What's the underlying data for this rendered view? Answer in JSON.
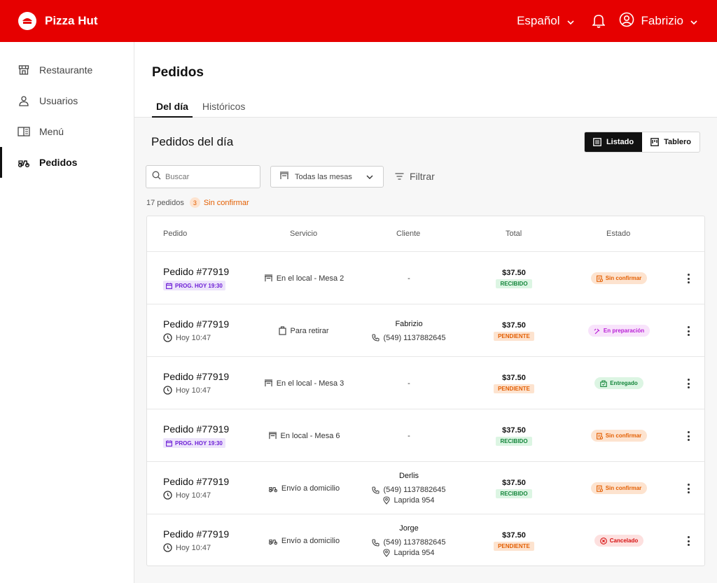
{
  "app": {
    "brand": "Pizza Hut",
    "language": "Español",
    "user": "Fabrizio"
  },
  "sidebar": {
    "items": [
      {
        "label": "Restaurante",
        "icon": "store-icon"
      },
      {
        "label": "Usuarios",
        "icon": "user-icon"
      },
      {
        "label": "Menú",
        "icon": "book-icon"
      },
      {
        "label": "Pedidos",
        "icon": "scooter-icon",
        "active": true
      }
    ]
  },
  "main": {
    "title": "Pedidos",
    "tabs": [
      {
        "label": "Del día",
        "active": true
      },
      {
        "label": "Históricos",
        "active": false
      }
    ],
    "section_title": "Pedidos del día",
    "view_toggle": {
      "list": "Listado",
      "board": "Tablero",
      "active": "Listado"
    },
    "search": {
      "placeholder": "Buscar",
      "value": ""
    },
    "table_select": {
      "value": "Todas las mesas"
    },
    "filter_label": "Filtrar",
    "summary": {
      "count_text": "17 pedidos",
      "unconfirmed_count": "3",
      "unconfirmed_label": "Sin confirmar"
    }
  },
  "table": {
    "headers": [
      "Pedido",
      "Servicio",
      "Cliente",
      "Total",
      "Estado"
    ],
    "rows": [
      {
        "order": "Pedido #77919",
        "sub_type": "prog",
        "sub": "PROG. HOY 19:30",
        "service_icon": "table-icon",
        "service": "En el local - Mesa 2",
        "client_name": "",
        "client_dash": "-",
        "client_phone": "",
        "client_address": "",
        "amount": "$37.50",
        "payment": "RECIBIDO",
        "status": "Sin confirmar",
        "status_kind": "sin"
      },
      {
        "order": "Pedido #77919",
        "sub_type": "time",
        "sub": "Hoy 10:47",
        "service_icon": "bag-icon",
        "service": "Para retirar",
        "client_name": "Fabrizio",
        "client_dash": "",
        "client_phone": "(549) 1137882645",
        "client_address": "",
        "amount": "$37.50",
        "payment": "PENDIENTE",
        "status": "En preparación",
        "status_kind": "prep"
      },
      {
        "order": "Pedido #77919",
        "sub_type": "time",
        "sub": "Hoy 10:47",
        "service_icon": "table-icon",
        "service": "En el local - Mesa 3",
        "client_name": "",
        "client_dash": "-",
        "client_phone": "",
        "client_address": "",
        "amount": "$37.50",
        "payment": "PENDIENTE",
        "status": "Entregado",
        "status_kind": "entr"
      },
      {
        "order": "Pedido #77919",
        "sub_type": "prog",
        "sub": "PROG. HOY 19:30",
        "service_icon": "table-icon",
        "service": "En local - Mesa 6",
        "client_name": "",
        "client_dash": "-",
        "client_phone": "",
        "client_address": "",
        "amount": "$37.50",
        "payment": "RECIBIDO",
        "status": "Sin confirmar",
        "status_kind": "sin"
      },
      {
        "order": "Pedido #77919",
        "sub_type": "time",
        "sub": "Hoy 10:47",
        "service_icon": "scooter-icon",
        "service": "Envío a domicilio",
        "client_name": "Derlis",
        "client_dash": "",
        "client_phone": "(549) 1137882645",
        "client_address": "Laprida 954",
        "amount": "$37.50",
        "payment": "RECIBIDO",
        "status": "Sin confirmar",
        "status_kind": "sin"
      },
      {
        "order": "Pedido #77919",
        "sub_type": "time",
        "sub": "Hoy 10:47",
        "service_icon": "scooter-icon",
        "service": "Envío a domicilio",
        "client_name": "Jorge",
        "client_dash": "",
        "client_phone": "(549) 1137882645",
        "client_address": "Laprida 954",
        "amount": "$37.50",
        "payment": "PENDIENTE",
        "status": "Cancelado",
        "status_kind": "canc"
      }
    ]
  },
  "colors": {
    "brand": "#e60000",
    "orange": "#e35e00",
    "green": "#13853a",
    "purple": "#6d1fd6",
    "magenta": "#b91fd6",
    "red": "#d60f0f"
  }
}
